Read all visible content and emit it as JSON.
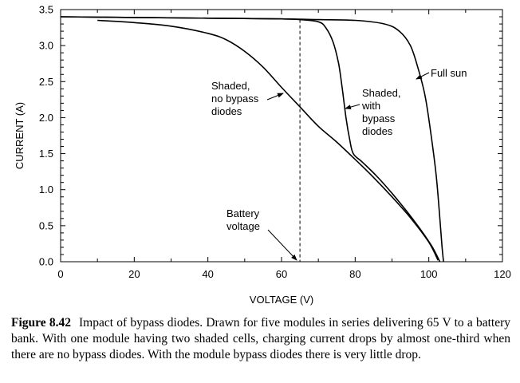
{
  "chart_data": {
    "type": "line",
    "xlabel": "VOLTAGE (V)",
    "ylabel": "CURRENT (A)",
    "xlim": [
      0,
      120
    ],
    "ylim": [
      0,
      3.5
    ],
    "x_ticks": [
      0,
      20,
      40,
      60,
      80,
      100,
      120
    ],
    "y_ticks": [
      "0.0",
      "0.5",
      "1.0",
      "1.5",
      "2.0",
      "2.5",
      "3.0",
      "3.5"
    ],
    "grid": false,
    "series": [
      {
        "name": "Full sun",
        "points": [
          [
            0,
            3.4
          ],
          [
            20,
            3.39
          ],
          [
            40,
            3.38
          ],
          [
            60,
            3.37
          ],
          [
            70,
            3.36
          ],
          [
            80,
            3.35
          ],
          [
            88,
            3.3
          ],
          [
            92,
            3.2
          ],
          [
            95,
            3.0
          ],
          [
            97,
            2.7
          ],
          [
            99,
            2.3
          ],
          [
            100.5,
            1.8
          ],
          [
            102,
            1.2
          ],
          [
            103,
            0.6
          ],
          [
            103.6,
            0.2
          ],
          [
            104,
            0.0
          ]
        ]
      },
      {
        "name": "Shaded, with bypass diodes",
        "points": [
          [
            0,
            3.4
          ],
          [
            20,
            3.39
          ],
          [
            40,
            3.38
          ],
          [
            60,
            3.37
          ],
          [
            65,
            3.36
          ],
          [
            70,
            3.33
          ],
          [
            72,
            3.25
          ],
          [
            74,
            3.05
          ],
          [
            75.5,
            2.75
          ],
          [
            76.5,
            2.4
          ],
          [
            77.5,
            2.0
          ],
          [
            78.5,
            1.7
          ],
          [
            79.5,
            1.5
          ],
          [
            82,
            1.38
          ],
          [
            86,
            1.18
          ],
          [
            90,
            0.95
          ],
          [
            94,
            0.7
          ],
          [
            98,
            0.43
          ],
          [
            101,
            0.2
          ],
          [
            103,
            0.0
          ]
        ]
      },
      {
        "name": "Shaded, no bypass diodes",
        "points": [
          [
            10,
            3.35
          ],
          [
            20,
            3.32
          ],
          [
            30,
            3.27
          ],
          [
            40,
            3.17
          ],
          [
            45,
            3.08
          ],
          [
            50,
            2.92
          ],
          [
            55,
            2.7
          ],
          [
            60,
            2.42
          ],
          [
            65,
            2.15
          ],
          [
            70,
            1.88
          ],
          [
            75,
            1.66
          ],
          [
            80,
            1.42
          ],
          [
            85,
            1.17
          ],
          [
            90,
            0.9
          ],
          [
            95,
            0.61
          ],
          [
            100,
            0.27
          ],
          [
            102.5,
            0.02
          ]
        ]
      }
    ],
    "battery_voltage": 65,
    "annotations": [
      {
        "lines": [
          "Full sun"
        ]
      },
      {
        "lines": [
          "Shaded,",
          "with",
          "bypass",
          "diodes"
        ]
      },
      {
        "lines": [
          "Shaded,",
          "no bypass",
          "diodes"
        ]
      },
      {
        "lines": [
          "Battery",
          "voltage"
        ]
      }
    ]
  },
  "caption": {
    "label": "Figure 8.42",
    "text": "Impact of bypass diodes. Drawn for five modules in series delivering 65 V to a battery bank. With one module having two shaded cells, charging current drops by almost one-third when there are no bypass diodes. With the module bypass diodes there is very little drop."
  }
}
